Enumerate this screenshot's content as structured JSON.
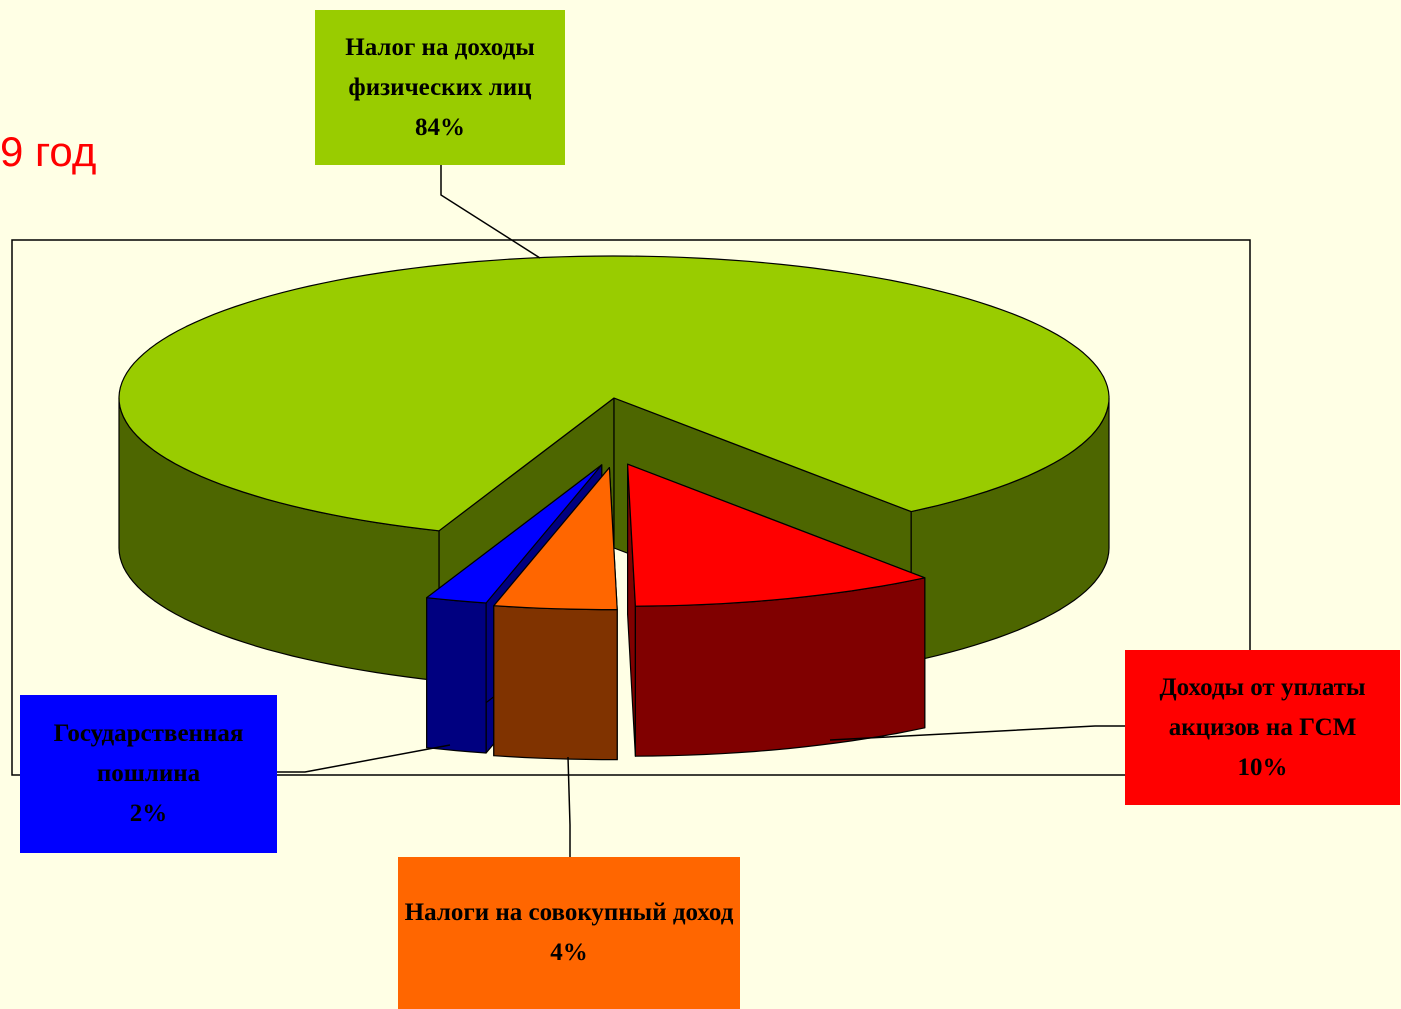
{
  "chart_data": {
    "type": "pie3d",
    "title": "9 год",
    "categories": [
      "Налог на доходы физических лиц",
      "Доходы от уплаты акцизов на ГСМ",
      "Налоги на совокупный доход",
      "Государственная пошлина"
    ],
    "values": [
      84,
      10,
      4,
      2
    ],
    "value_labels": [
      "84%",
      "10%",
      "4%",
      "2%"
    ],
    "colors": [
      "#99cc00",
      "#ff0000",
      "#ff6600",
      "#0000ff"
    ]
  }
}
